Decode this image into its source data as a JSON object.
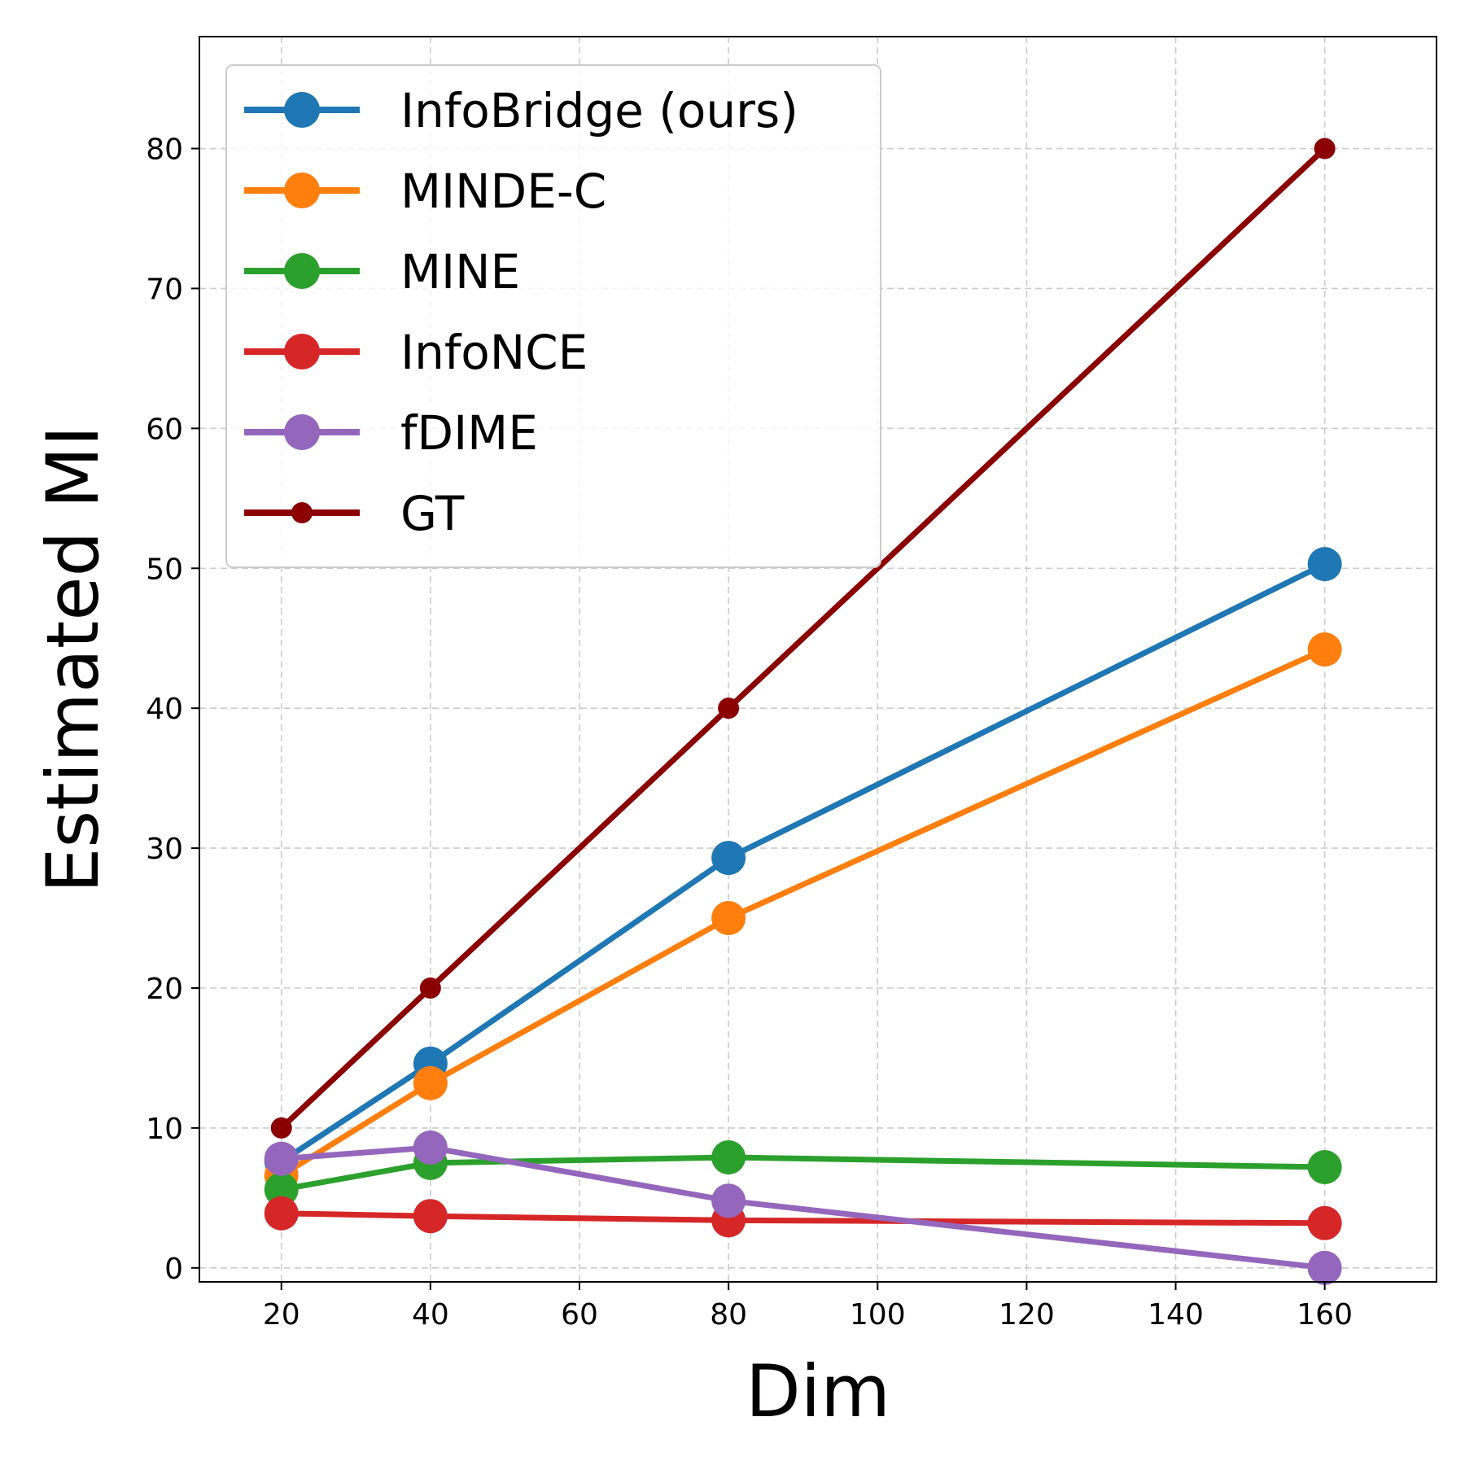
{
  "chart_data": {
    "type": "line",
    "title": "",
    "xlabel": "Dim",
    "ylabel": "Estimated MI",
    "xlim": [
      9,
      175
    ],
    "ylim": [
      -1,
      88
    ],
    "xticks": [
      20,
      40,
      60,
      80,
      100,
      120,
      140,
      160
    ],
    "yticks": [
      0,
      10,
      20,
      30,
      40,
      50,
      60,
      70,
      80
    ],
    "grid": true,
    "legend_position": "top-left",
    "x": [
      20,
      40,
      80,
      160
    ],
    "series": [
      {
        "name": "InfoBridge (ours)",
        "color": "#1f77b4",
        "marker": "large",
        "values": [
          7.6,
          14.6,
          29.3,
          50.3
        ]
      },
      {
        "name": "MINDE-C",
        "color": "#ff7f0e",
        "marker": "large",
        "values": [
          6.6,
          13.2,
          25.0,
          44.2
        ]
      },
      {
        "name": "MINE",
        "color": "#2ca02c",
        "marker": "large",
        "values": [
          5.6,
          7.5,
          7.9,
          7.2
        ]
      },
      {
        "name": "InfoNCE",
        "color": "#d62728",
        "marker": "large",
        "values": [
          3.9,
          3.7,
          3.4,
          3.2
        ]
      },
      {
        "name": "fDIME",
        "color": "#9467bd",
        "marker": "large",
        "values": [
          7.8,
          8.6,
          4.8,
          0.0
        ]
      },
      {
        "name": "GT",
        "color": "#8b0000",
        "marker": "small",
        "values": [
          10,
          20,
          40,
          80
        ]
      }
    ]
  }
}
